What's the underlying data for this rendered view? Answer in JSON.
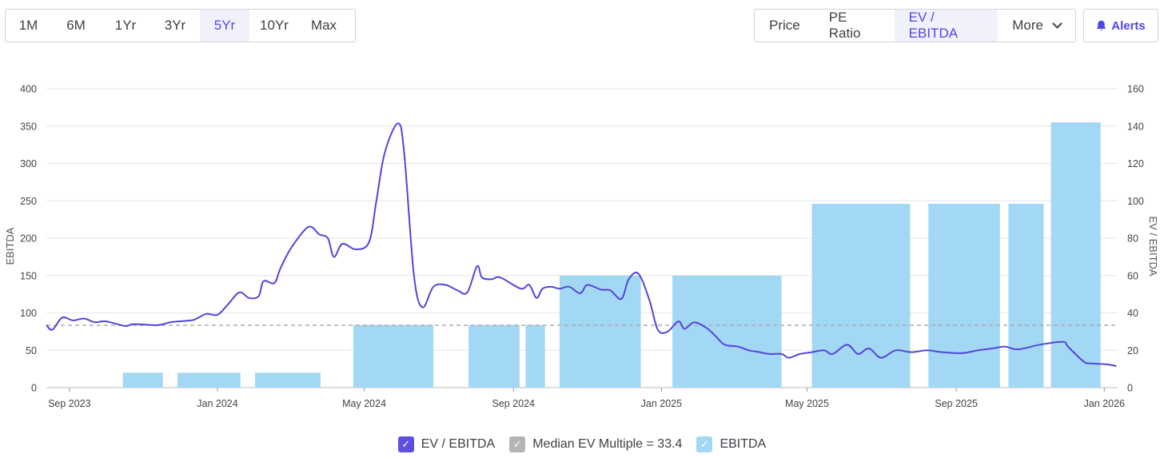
{
  "range_tabs": [
    {
      "label": "1M",
      "active": false
    },
    {
      "label": "6M",
      "active": false
    },
    {
      "label": "1Yr",
      "active": false
    },
    {
      "label": "3Yr",
      "active": false
    },
    {
      "label": "5Yr",
      "active": true
    },
    {
      "label": "10Yr",
      "active": false
    },
    {
      "label": "Max",
      "active": false
    }
  ],
  "metric_tabs": [
    {
      "label": "Price",
      "active": false
    },
    {
      "label": "PE Ratio",
      "active": false
    },
    {
      "label": "EV / EBITDA",
      "active": true
    }
  ],
  "more_label": "More",
  "alerts_label": "Alerts",
  "icons": {
    "more": "chevron-down-icon",
    "alerts": "bell-icon",
    "legend_check": "checkmark-icon"
  },
  "colors": {
    "accent": "#4f46e5",
    "line": "#5246d9",
    "bars": "#a3d8f4",
    "median": "#b5b5b5"
  },
  "legend": [
    {
      "label": "EV / EBITDA",
      "color": "#5b50e0"
    },
    {
      "label": "Median EV Multiple = 33.4",
      "color": "#b5b5b5"
    },
    {
      "label": "EBITDA",
      "color": "#a3d8f4"
    }
  ],
  "chart_data": {
    "type": "bar+line",
    "left_axis": {
      "label": "EBITDA",
      "ticks": [
        0,
        50,
        100,
        150,
        200,
        250,
        300,
        350,
        400
      ],
      "range": [
        0,
        400
      ]
    },
    "right_axis": {
      "label": "EV / EBITDA",
      "ticks": [
        0,
        20,
        40,
        60,
        80,
        100,
        120,
        140,
        160
      ],
      "range": [
        0,
        160
      ]
    },
    "x_axis": {
      "ticks": [
        "Sep 2023",
        "Jan 2024",
        "May 2024",
        "Sep 2024",
        "Jan 2025",
        "May 2025",
        "Sep 2025",
        "Jan 2026"
      ],
      "range": [
        "2023-08-13",
        "2026-01-12"
      ]
    },
    "median_ev_multiple": 33.4,
    "ebitda_bars": [
      {
        "start": "2023-10-15",
        "end": "2023-11-17",
        "value": 20
      },
      {
        "start": "2023-11-29",
        "end": "2024-01-20",
        "value": 20
      },
      {
        "start": "2024-02-01",
        "end": "2024-03-26",
        "value": 20
      },
      {
        "start": "2024-04-22",
        "end": "2024-06-27",
        "value": 84
      },
      {
        "start": "2024-07-26",
        "end": "2024-09-06",
        "value": 84
      },
      {
        "start": "2024-09-11",
        "end": "2024-09-27",
        "value": 84
      },
      {
        "start": "2024-10-09",
        "end": "2024-12-15",
        "value": 150
      },
      {
        "start": "2025-01-10",
        "end": "2025-04-10",
        "value": 150
      },
      {
        "start": "2025-05-05",
        "end": "2025-07-25",
        "value": 246
      },
      {
        "start": "2025-08-09",
        "end": "2025-10-07",
        "value": 246
      },
      {
        "start": "2025-10-14",
        "end": "2025-11-12",
        "value": 246
      },
      {
        "start": "2025-11-18",
        "end": "2025-12-29",
        "value": 355
      }
    ],
    "ev_ebitda_series": [
      [
        "2023-08-13",
        33.5
      ],
      [
        "2023-08-18",
        31.0
      ],
      [
        "2023-08-26",
        37.5
      ],
      [
        "2023-09-04",
        36.0
      ],
      [
        "2023-09-13",
        37.0
      ],
      [
        "2023-09-22",
        35.0
      ],
      [
        "2023-10-01",
        35.5
      ],
      [
        "2023-10-17",
        33.0
      ],
      [
        "2023-10-24",
        34.0
      ],
      [
        "2023-11-13",
        33.5
      ],
      [
        "2023-11-23",
        35.0
      ],
      [
        "2023-12-10",
        36.0
      ],
      [
        "2023-12-15",
        37.0
      ],
      [
        "2023-12-23",
        39.5
      ],
      [
        "2024-01-01",
        39.0
      ],
      [
        "2024-01-09",
        44.0
      ],
      [
        "2024-01-19",
        51.0
      ],
      [
        "2024-01-27",
        48.0
      ],
      [
        "2024-02-04",
        49.0
      ],
      [
        "2024-02-08",
        57.0
      ],
      [
        "2024-02-17",
        56.0
      ],
      [
        "2024-02-22",
        64.0
      ],
      [
        "2024-03-02",
        75.0
      ],
      [
        "2024-03-16",
        86.0
      ],
      [
        "2024-03-25",
        82.0
      ],
      [
        "2024-04-01",
        80.0
      ],
      [
        "2024-04-06",
        70.0
      ],
      [
        "2024-04-13",
        77.0
      ],
      [
        "2024-04-24",
        74.0
      ],
      [
        "2024-05-05",
        78.0
      ],
      [
        "2024-05-11",
        100.0
      ],
      [
        "2024-05-18",
        126.0
      ],
      [
        "2024-05-29",
        141.5
      ],
      [
        "2024-06-03",
        125.0
      ],
      [
        "2024-06-11",
        60.0
      ],
      [
        "2024-06-18",
        43.0
      ],
      [
        "2024-06-27",
        54.0
      ],
      [
        "2024-07-07",
        55.0
      ],
      [
        "2024-07-17",
        52.0
      ],
      [
        "2024-07-25",
        51.0
      ],
      [
        "2024-08-02",
        65.0
      ],
      [
        "2024-08-06",
        59.0
      ],
      [
        "2024-08-14",
        58.0
      ],
      [
        "2024-08-21",
        59.0
      ],
      [
        "2024-09-07",
        53.0
      ],
      [
        "2024-09-14",
        55.0
      ],
      [
        "2024-09-20",
        48.0
      ],
      [
        "2024-09-25",
        53.0
      ],
      [
        "2024-10-02",
        54.0
      ],
      [
        "2024-10-09",
        53.0
      ],
      [
        "2024-10-17",
        54.0
      ],
      [
        "2024-10-26",
        50.5
      ],
      [
        "2024-11-01",
        55.0
      ],
      [
        "2024-11-12",
        52.5
      ],
      [
        "2024-11-20",
        52.0
      ],
      [
        "2024-11-29",
        47.5
      ],
      [
        "2024-12-05",
        58.0
      ],
      [
        "2024-12-13",
        61.0
      ],
      [
        "2024-12-22",
        47.0
      ],
      [
        "2024-12-29",
        31.0
      ],
      [
        "2025-01-06",
        30.0
      ],
      [
        "2025-01-15",
        35.5
      ],
      [
        "2025-01-20",
        31.5
      ],
      [
        "2025-01-28",
        35.0
      ],
      [
        "2025-02-07",
        32.0
      ],
      [
        "2025-02-14",
        28.0
      ],
      [
        "2025-02-22",
        23.0
      ],
      [
        "2025-03-05",
        22.0
      ],
      [
        "2025-03-14",
        20.0
      ],
      [
        "2025-03-23",
        19.0
      ],
      [
        "2025-03-31",
        18.0
      ],
      [
        "2025-04-10",
        18.0
      ],
      [
        "2025-04-16",
        16.0
      ],
      [
        "2025-04-25",
        18.0
      ],
      [
        "2025-05-05",
        19.0
      ],
      [
        "2025-05-15",
        20.0
      ],
      [
        "2025-05-22",
        18.0
      ],
      [
        "2025-06-03",
        23.0
      ],
      [
        "2025-06-12",
        18.0
      ],
      [
        "2025-06-21",
        21.0
      ],
      [
        "2025-07-01",
        16.0
      ],
      [
        "2025-07-13",
        20.0
      ],
      [
        "2025-07-26",
        19.0
      ],
      [
        "2025-08-08",
        20.0
      ],
      [
        "2025-08-20",
        19.0
      ],
      [
        "2025-09-06",
        18.5
      ],
      [
        "2025-09-19",
        20.0
      ],
      [
        "2025-10-01",
        21.0
      ],
      [
        "2025-10-11",
        22.0
      ],
      [
        "2025-10-22",
        20.5
      ],
      [
        "2025-11-09",
        23.0
      ],
      [
        "2025-11-28",
        24.5
      ],
      [
        "2025-12-02",
        22.0
      ],
      [
        "2025-12-15",
        14.0
      ],
      [
        "2025-12-21",
        13.0
      ],
      [
        "2026-01-03",
        12.5
      ],
      [
        "2026-01-11",
        11.5
      ]
    ]
  }
}
